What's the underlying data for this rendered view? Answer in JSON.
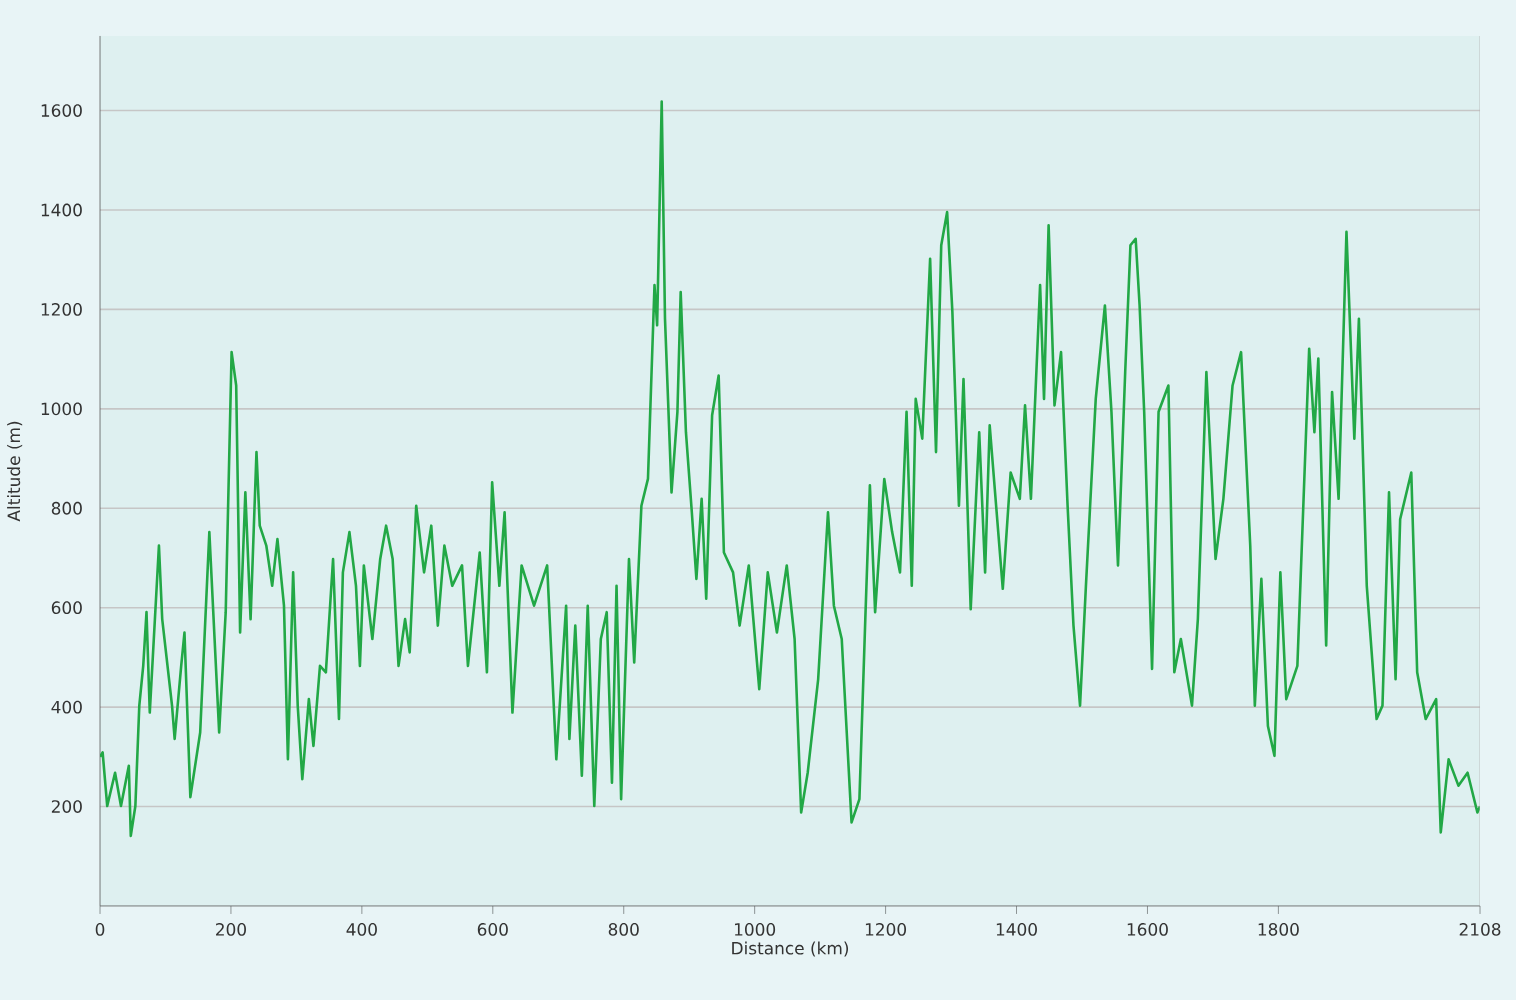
{
  "chart_data": {
    "type": "line",
    "xlabel": "Distance  (km)",
    "ylabel": "Altitude (m)",
    "x": [
      0,
      4,
      11,
      23,
      32,
      44,
      47,
      54,
      60,
      66,
      71,
      76,
      90,
      95,
      110,
      114,
      124,
      129,
      138,
      153,
      167,
      182,
      192,
      201,
      208,
      214,
      222,
      230,
      239,
      244,
      254,
      263,
      271,
      281,
      287,
      295,
      302,
      309,
      319,
      326,
      336,
      345,
      356,
      365,
      371,
      381,
      391,
      397,
      403,
      416,
      428,
      437,
      447,
      456,
      466,
      473,
      483,
      495,
      506,
      516,
      526,
      538,
      553,
      562,
      580,
      591,
      599,
      610,
      618,
      630,
      644,
      663,
      683,
      697,
      712,
      717,
      726,
      736,
      745,
      755,
      765,
      774,
      782,
      789,
      796,
      808,
      816,
      827,
      837,
      847,
      851,
      858,
      863,
      873,
      882,
      887,
      895,
      904,
      911,
      919,
      926,
      935,
      945,
      953,
      967,
      977,
      991,
      1007,
      1020,
      1034,
      1049,
      1061,
      1071,
      1081,
      1097,
      1112,
      1121,
      1133,
      1148,
      1160,
      1169,
      1176,
      1184,
      1198,
      1210,
      1222,
      1232,
      1240,
      1246,
      1256,
      1268,
      1277,
      1285,
      1294,
      1302,
      1312,
      1319,
      1330,
      1343,
      1352,
      1359,
      1379,
      1391,
      1405,
      1413,
      1422,
      1436,
      1442,
      1449,
      1458,
      1468,
      1478,
      1487,
      1497,
      1506,
      1521,
      1535,
      1545,
      1555,
      1566,
      1574,
      1582,
      1588,
      1595,
      1607,
      1617,
      1632,
      1641,
      1651,
      1668,
      1677,
      1690,
      1704,
      1716,
      1730,
      1743,
      1757,
      1764,
      1774,
      1784,
      1794,
      1803,
      1812,
      1829,
      1847,
      1855,
      1861,
      1873,
      1882,
      1892,
      1904,
      1916,
      1923,
      1935,
      1950,
      1959,
      1969,
      1979,
      1986,
      2003,
      2012,
      2025,
      2041,
      2048,
      2060,
      2075,
      2089,
      2104,
      2108
    ],
    "series": [
      {
        "color": "#22a846",
        "values": [
          300,
          309,
          201,
          268,
          201,
          282,
          141,
          201,
          403,
          483,
          591,
          389,
          725,
          577,
          403,
          336,
          483,
          550,
          219,
          349,
          752,
          349,
          591,
          1114,
          1047,
          550,
          832,
          577,
          913,
          765,
          725,
          644,
          738,
          604,
          295,
          671,
          403,
          255,
          416,
          322,
          483,
          470,
          698,
          376,
          671,
          752,
          644,
          483,
          685,
          537,
          698,
          765,
          698,
          483,
          577,
          510,
          805,
          671,
          765,
          564,
          725,
          644,
          685,
          483,
          711,
          470,
          852,
          644,
          792,
          389,
          685,
          604,
          685,
          295,
          604,
          336,
          564,
          262,
          604,
          201,
          537,
          591,
          248,
          644,
          215,
          698,
          490,
          805,
          859,
          1249,
          1168,
          1618,
          1182,
          832,
          994,
          1235,
          953,
          792,
          658,
          819,
          618,
          987,
          1067,
          711,
          671,
          564,
          685,
          436,
          671,
          550,
          685,
          537,
          188,
          268,
          456,
          792,
          604,
          537,
          168,
          215,
          577,
          846,
          591,
          859,
          752,
          671,
          994,
          644,
          1020,
          940,
          1302,
          913,
          1329,
          1396,
          1195,
          805,
          1060,
          597,
          953,
          671,
          967,
          638,
          872,
          819,
          1007,
          819,
          1249,
          1020,
          1369,
          1007,
          1114,
          805,
          564,
          403,
          644,
          1020,
          1208,
          994,
          685,
          1074,
          1329,
          1342,
          1208,
          994,
          477,
          994,
          1047,
          470,
          537,
          403,
          577,
          1074,
          698,
          819,
          1047,
          1114,
          725,
          403,
          658,
          362,
          302,
          671,
          416,
          483,
          1121,
          953,
          1101,
          524,
          1034,
          819,
          1356,
          940,
          1181,
          644,
          376,
          403,
          832,
          456,
          778,
          872,
          470,
          376,
          416,
          148,
          295,
          242,
          268,
          188,
          200
        ]
      }
    ],
    "xlim": [
      0,
      2108
    ],
    "ylim": [
      0,
      1750
    ],
    "xticks": [
      0,
      200,
      400,
      600,
      800,
      1000,
      1200,
      1400,
      1600,
      1800,
      2108
    ],
    "yticks": [
      200,
      400,
      600,
      800,
      1000,
      1200,
      1400,
      1600
    ],
    "grid": "y"
  }
}
